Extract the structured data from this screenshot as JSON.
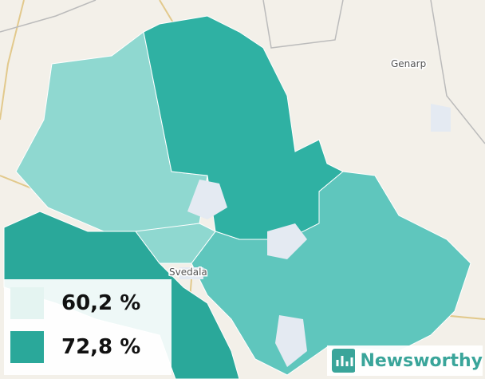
{
  "places": [
    "Genarp",
    "Svedala"
  ],
  "legend": [
    {
      "label": "60,2 %",
      "color": "#e4f4f1"
    },
    {
      "label": "72,8 %",
      "color": "#2aa89a"
    }
  ],
  "brand": "Newsworthy"
}
